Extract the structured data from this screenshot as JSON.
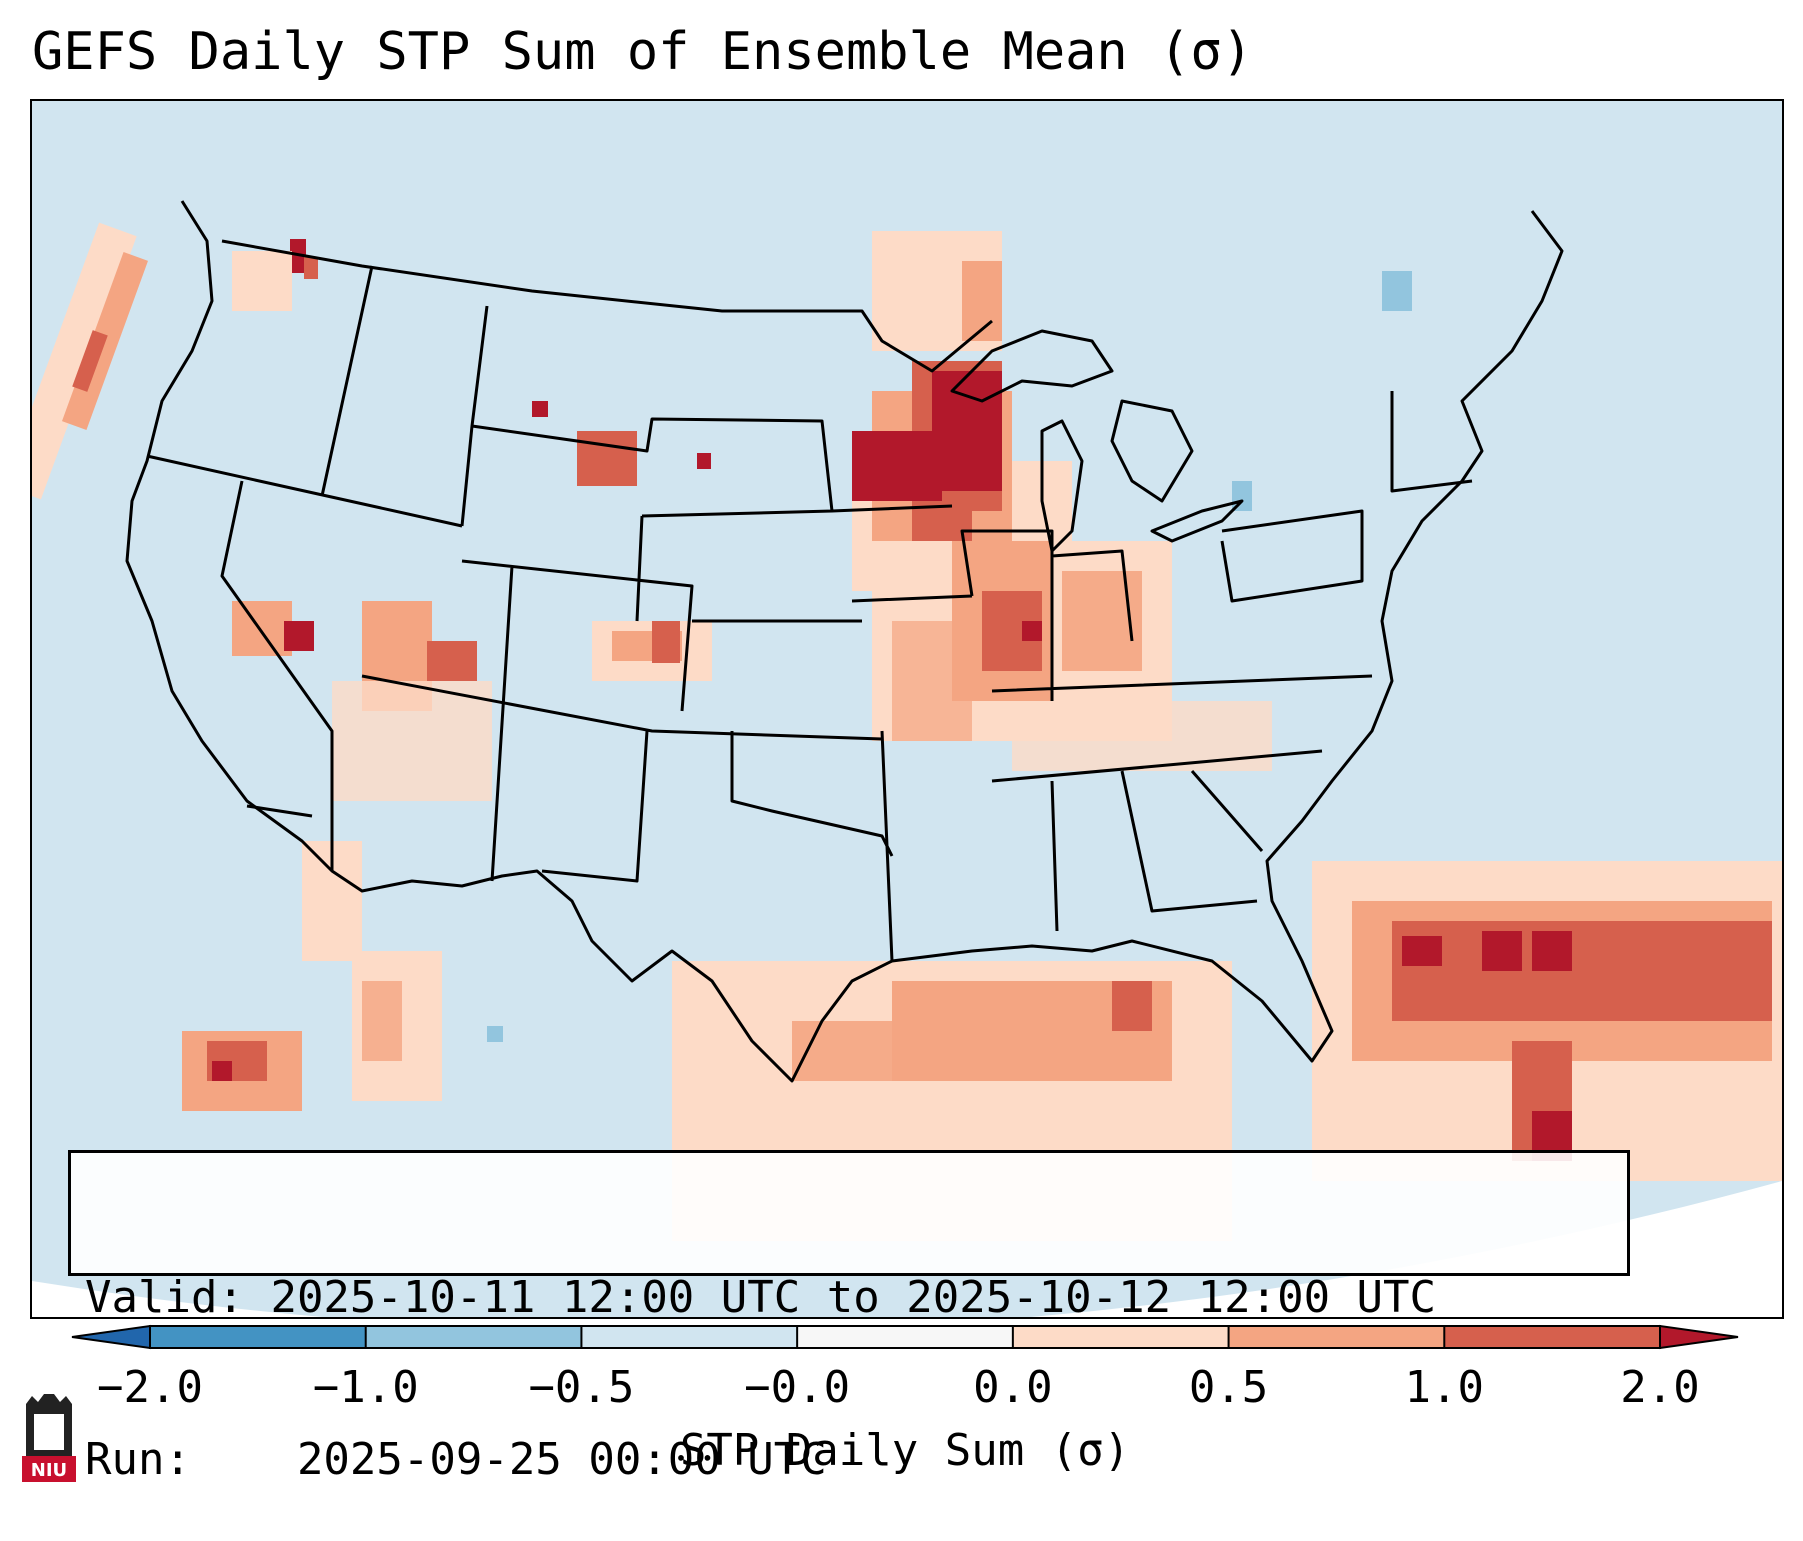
{
  "title": "GEFS Daily STP Sum of Ensemble Mean (σ)",
  "info": {
    "valid_label": "Valid:",
    "valid_value": "2025-10-11 12:00 UTC to 2025-10-12 12:00 UTC",
    "run_label": "Run:",
    "run_value": "2025-09-25 00:00 UTC"
  },
  "colorbar": {
    "label": "STP Daily Sum (σ)",
    "ticks": [
      "−2.0",
      "−1.0",
      "−0.5",
      "−0.0",
      "0.0",
      "0.5",
      "1.0",
      "2.0"
    ],
    "colors": [
      "#2166ac",
      "#4393c3",
      "#92c5de",
      "#d1e5f0",
      "#f7f7f7",
      "#fddbc7",
      "#f4a582",
      "#d6604d",
      "#b2182b"
    ]
  },
  "map": {
    "region": "CONUS",
    "field": "STP daily sum anomaly (ensemble mean)",
    "notable_features": [
      "Upper Midwest maximum (Iowa / Wisconsin / Illinois)",
      "Gulf of Mexico positive anomalies",
      "Western Atlantic positive anomalies"
    ]
  },
  "logo": {
    "text": "NIU",
    "icon": "niu-university-logo-icon"
  }
}
